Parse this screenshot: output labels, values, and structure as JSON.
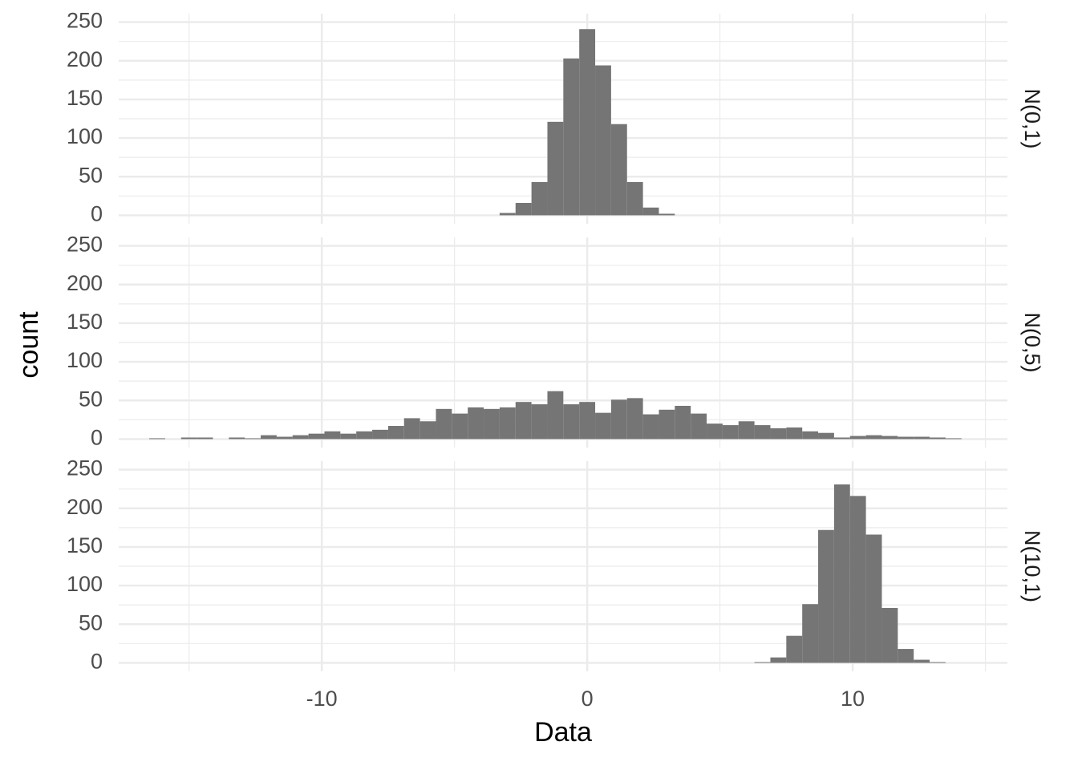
{
  "chart_data": {
    "type": "histogram",
    "xlabel": "Data",
    "ylabel": "count",
    "xlim": [
      -17.65,
      15.83
    ],
    "xticks": [
      -10,
      0,
      10
    ],
    "xminor": [
      -15,
      -5,
      5,
      15
    ],
    "ylim": [
      -11,
      261
    ],
    "yticks": [
      0,
      50,
      100,
      150,
      200,
      250
    ],
    "yminor": [
      25,
      75,
      125,
      175,
      225
    ],
    "grid": true,
    "color": "#757575",
    "bins": [
      -16.5,
      -15.9,
      -15.3,
      -14.7,
      -14.1,
      -13.5,
      -12.9,
      -12.3,
      -11.7,
      -11.1,
      -10.5,
      -9.9,
      -9.3,
      -8.7,
      -8.1,
      -7.5,
      -6.9,
      -6.3,
      -5.7,
      -5.1,
      -4.5,
      -3.9,
      -3.3,
      -2.7,
      -2.1,
      -1.5,
      -0.9,
      -0.3,
      0.3,
      0.9,
      1.5,
      2.1,
      2.7,
      3.3,
      3.9,
      4.5,
      5.1,
      5.7,
      6.3,
      6.9,
      7.5,
      8.1,
      8.7,
      9.3,
      9.9,
      10.5,
      11.1,
      11.7,
      12.3,
      12.9,
      13.5,
      14.1,
      14.7
    ],
    "facets": [
      {
        "name": "N(0,1)",
        "values": [
          0,
          0,
          0,
          0,
          0,
          0,
          0,
          0,
          0,
          0,
          0,
          0,
          0,
          0,
          0,
          0,
          0,
          0,
          0,
          0,
          0,
          0,
          3,
          16,
          43,
          121,
          203,
          241,
          194,
          118,
          43,
          10,
          2,
          0,
          0,
          0,
          0,
          0,
          0,
          0,
          0,
          0,
          0,
          0,
          0,
          0,
          0,
          0,
          0,
          0,
          0,
          0
        ]
      },
      {
        "name": "N(0,5)",
        "values": [
          1,
          0,
          2,
          2,
          0,
          2,
          1,
          5,
          3,
          5,
          7,
          10,
          7,
          10,
          12,
          17,
          27,
          23,
          39,
          33,
          41,
          39,
          41,
          48,
          45,
          62,
          45,
          48,
          34,
          51,
          53,
          32,
          38,
          43,
          33,
          20,
          18,
          23,
          18,
          14,
          15,
          10,
          8,
          2,
          4,
          5,
          4,
          3,
          3,
          2,
          1,
          0
        ]
      },
      {
        "name": "N(10,1)",
        "values": [
          0,
          0,
          0,
          0,
          0,
          0,
          0,
          0,
          0,
          0,
          0,
          0,
          0,
          0,
          0,
          0,
          0,
          0,
          0,
          0,
          0,
          0,
          0,
          0,
          0,
          0,
          0,
          0,
          0,
          0,
          0,
          0,
          0,
          0,
          0,
          0,
          0,
          0,
          1,
          7,
          35,
          76,
          172,
          231,
          216,
          166,
          71,
          18,
          4,
          1,
          0,
          0
        ]
      }
    ]
  }
}
